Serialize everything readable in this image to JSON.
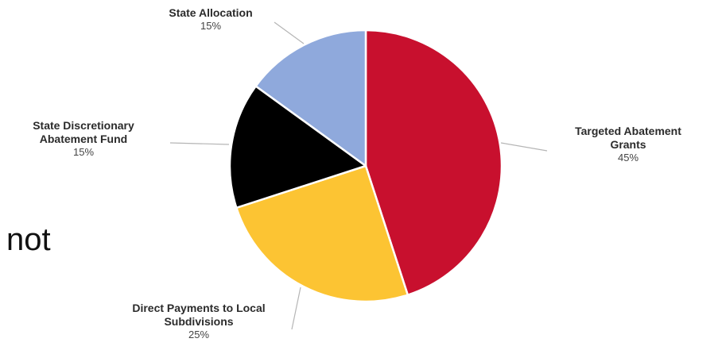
{
  "stray_text": "not",
  "chart_data": {
    "type": "pie",
    "title": "",
    "slices": [
      {
        "label": "Targeted Abatement\nGrants",
        "percent_label": "45%",
        "value": 45,
        "color": "#c8102e"
      },
      {
        "label": "Direct Payments to Local\nSubdivisions",
        "percent_label": "25%",
        "value": 25,
        "color": "#fcc433"
      },
      {
        "label": "State Discretionary\nAbatement Fund",
        "percent_label": "15%",
        "value": 15,
        "color": "#000000"
      },
      {
        "label": "State Allocation",
        "percent_label": "15%",
        "value": 15,
        "color": "#8fa9dc"
      }
    ]
  }
}
